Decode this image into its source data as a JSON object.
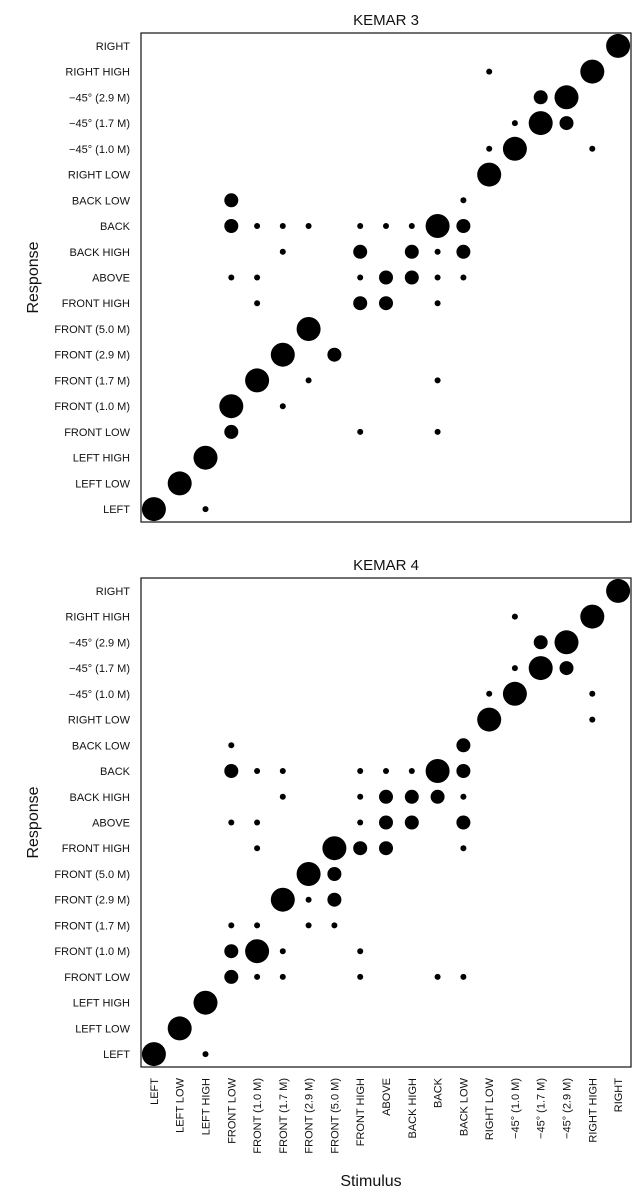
{
  "chart_data": {
    "type": "scatter",
    "xlabel": "Stimulus",
    "ylabel": "Response",
    "categories": [
      "LEFT",
      "LEFT LOW",
      "LEFT HIGH",
      "FRONT LOW",
      "FRONT (1.0 M)",
      "FRONT (1.7 M)",
      "FRONT (2.9 M)",
      "FRONT (5.0 M)",
      "FRONT HIGH",
      "ABOVE",
      "BACK HIGH",
      "BACK",
      "BACK LOW",
      "RIGHT LOW",
      "−45° (1.0 M)",
      "−45° (1.7 M)",
      "−45° (2.9 M)",
      "RIGHT HIGH",
      "RIGHT"
    ],
    "panels": [
      {
        "title": "KEMAR 3",
        "points": [
          [
            0,
            0,
            3
          ],
          [
            1,
            1,
            3
          ],
          [
            2,
            2,
            3
          ],
          [
            3,
            4,
            3
          ],
          [
            4,
            5,
            3
          ],
          [
            5,
            6,
            3
          ],
          [
            6,
            7,
            3
          ],
          [
            13,
            13,
            3
          ],
          [
            14,
            14,
            3
          ],
          [
            15,
            15,
            3
          ],
          [
            16,
            16,
            3
          ],
          [
            17,
            17,
            3
          ],
          [
            18,
            18,
            3
          ],
          [
            11,
            11,
            3
          ],
          [
            12,
            11,
            2
          ],
          [
            10,
            10,
            2
          ],
          [
            9,
            9,
            2
          ],
          [
            10,
            9,
            2
          ],
          [
            2,
            0,
            1
          ],
          [
            3,
            3,
            2
          ],
          [
            3,
            4,
            2
          ],
          [
            5,
            4,
            1
          ],
          [
            4,
            5,
            1
          ],
          [
            6,
            5,
            1
          ],
          [
            5,
            6,
            2
          ],
          [
            7,
            6,
            2
          ],
          [
            6,
            7,
            1
          ],
          [
            4,
            8,
            1
          ],
          [
            8,
            8,
            2
          ],
          [
            9,
            8,
            2
          ],
          [
            11,
            8,
            1
          ],
          [
            3,
            9,
            1
          ],
          [
            4,
            9,
            1
          ],
          [
            8,
            9,
            1
          ],
          [
            11,
            9,
            1
          ],
          [
            12,
            9,
            1
          ],
          [
            5,
            10,
            1
          ],
          [
            8,
            10,
            2
          ],
          [
            11,
            10,
            1
          ],
          [
            12,
            10,
            2
          ],
          [
            3,
            11,
            2
          ],
          [
            4,
            11,
            1
          ],
          [
            5,
            11,
            1
          ],
          [
            6,
            11,
            1
          ],
          [
            8,
            11,
            1
          ],
          [
            9,
            11,
            1
          ],
          [
            10,
            11,
            1
          ],
          [
            3,
            12,
            2
          ],
          [
            12,
            12,
            1
          ],
          [
            8,
            3,
            1
          ],
          [
            11,
            3,
            1
          ],
          [
            11,
            5,
            1
          ],
          [
            13,
            14,
            1
          ],
          [
            17,
            14,
            1
          ],
          [
            14,
            15,
            1
          ],
          [
            16,
            15,
            2
          ],
          [
            15,
            16,
            2
          ],
          [
            13,
            17,
            1
          ]
        ]
      },
      {
        "title": "KEMAR 4",
        "points": [
          [
            0,
            0,
            3
          ],
          [
            1,
            1,
            3
          ],
          [
            2,
            2,
            3
          ],
          [
            4,
            4,
            3
          ],
          [
            5,
            6,
            3
          ],
          [
            6,
            7,
            3
          ],
          [
            7,
            8,
            3
          ],
          [
            11,
            11,
            3
          ],
          [
            13,
            13,
            3
          ],
          [
            14,
            14,
            3
          ],
          [
            15,
            15,
            3
          ],
          [
            16,
            16,
            3
          ],
          [
            17,
            17,
            3
          ],
          [
            18,
            18,
            3
          ],
          [
            9,
            10,
            2
          ],
          [
            10,
            10,
            2
          ],
          [
            9,
            9,
            2
          ],
          [
            10,
            9,
            2
          ],
          [
            2,
            0,
            1
          ],
          [
            3,
            3,
            2
          ],
          [
            4,
            3,
            1
          ],
          [
            5,
            3,
            1
          ],
          [
            8,
            3,
            1
          ],
          [
            11,
            3,
            1
          ],
          [
            12,
            3,
            1
          ],
          [
            3,
            4,
            2
          ],
          [
            5,
            4,
            1
          ],
          [
            8,
            4,
            1
          ],
          [
            3,
            5,
            1
          ],
          [
            4,
            5,
            1
          ],
          [
            6,
            5,
            1
          ],
          [
            7,
            5,
            1
          ],
          [
            5,
            6,
            2
          ],
          [
            6,
            6,
            1
          ],
          [
            7,
            6,
            2
          ],
          [
            6,
            7,
            2
          ],
          [
            7,
            7,
            2
          ],
          [
            4,
            8,
            1
          ],
          [
            8,
            8,
            2
          ],
          [
            9,
            8,
            2
          ],
          [
            12,
            8,
            1
          ],
          [
            3,
            9,
            1
          ],
          [
            4,
            9,
            1
          ],
          [
            8,
            9,
            1
          ],
          [
            12,
            9,
            2
          ],
          [
            5,
            10,
            1
          ],
          [
            8,
            10,
            1
          ],
          [
            11,
            10,
            2
          ],
          [
            12,
            10,
            1
          ],
          [
            3,
            11,
            2
          ],
          [
            4,
            11,
            1
          ],
          [
            5,
            11,
            1
          ],
          [
            8,
            11,
            1
          ],
          [
            9,
            11,
            1
          ],
          [
            10,
            11,
            1
          ],
          [
            12,
            11,
            2
          ],
          [
            3,
            12,
            1
          ],
          [
            12,
            12,
            2
          ],
          [
            13,
            14,
            1
          ],
          [
            17,
            14,
            1
          ],
          [
            17,
            13,
            1
          ],
          [
            14,
            15,
            1
          ],
          [
            16,
            15,
            2
          ],
          [
            15,
            16,
            2
          ],
          [
            14,
            17,
            1
          ]
        ]
      }
    ]
  }
}
